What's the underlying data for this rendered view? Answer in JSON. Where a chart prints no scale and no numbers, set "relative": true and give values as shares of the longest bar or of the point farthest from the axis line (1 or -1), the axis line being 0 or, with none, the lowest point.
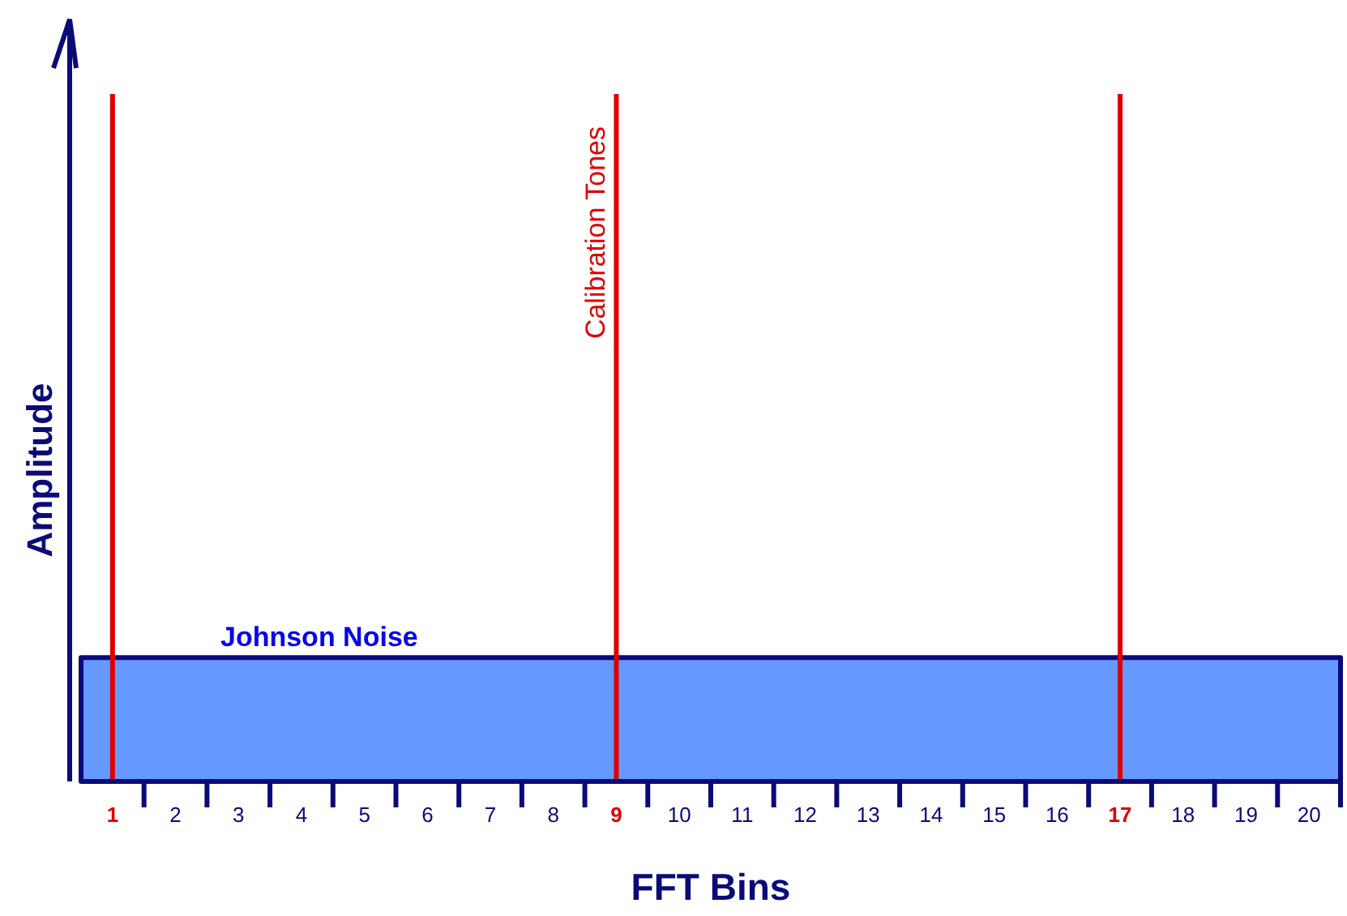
{
  "chart_data": {
    "type": "area",
    "relative": true,
    "xlabel": "FFT Bins",
    "ylabel": "Amplitude",
    "grid": false,
    "legend": false,
    "xlim": [
      0.5,
      20.5
    ],
    "xticks": [
      1,
      2,
      3,
      4,
      5,
      6,
      7,
      8,
      9,
      10,
      11,
      12,
      13,
      14,
      15,
      16,
      17,
      18,
      19,
      20
    ],
    "series": [
      {
        "name": "Johnson Noise",
        "color": "#6699ff",
        "x": [
          0.5,
          20.5
        ],
        "values": [
          0.18,
          0.18
        ]
      },
      {
        "name": "Calibration Tones",
        "type": "bar",
        "color": "#dd0000",
        "x": [
          1,
          9,
          17
        ],
        "values": [
          1,
          1,
          1
        ]
      }
    ]
  }
}
